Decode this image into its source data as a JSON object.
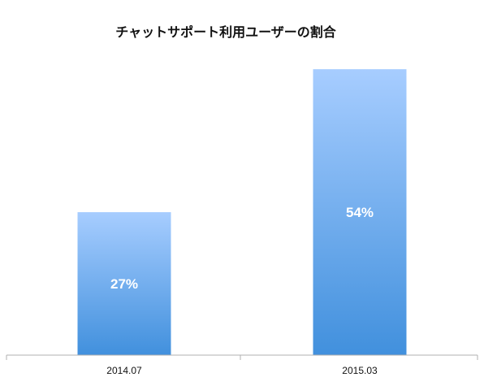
{
  "chart_data": {
    "type": "bar",
    "title": "チャットサポート利用ユーザーの割合",
    "categories": [
      "2014.07",
      "2015.03"
    ],
    "values": [
      27,
      54
    ],
    "data_labels": [
      "27%",
      "54%"
    ],
    "ylim": [
      0,
      64
    ],
    "grid": false,
    "legend": "none",
    "colors": {
      "bar_top": "#a7cdff",
      "bar_bottom": "#4190dd",
      "axis": "#b0b0b0",
      "text": "#111111",
      "label": "#ffffff"
    }
  }
}
